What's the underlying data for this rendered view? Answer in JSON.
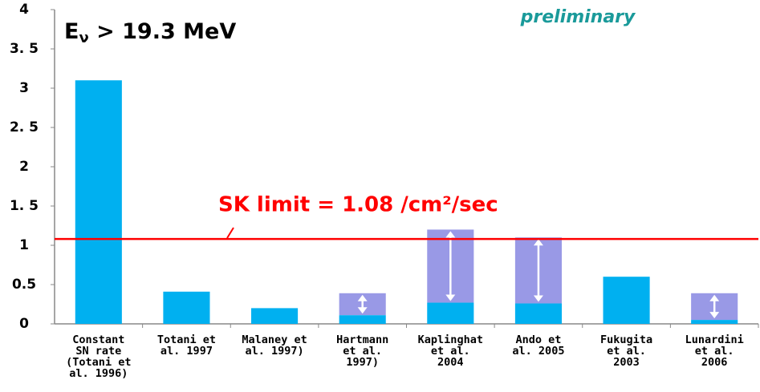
{
  "chart_data": {
    "type": "range-bar",
    "title": "E",
    "title_sub": "ν",
    "title_rest": " > 19.3 MeV",
    "watermark": "preliminary",
    "annotation": "SK limit = 1.08 /cm²/sec",
    "limit": 1.08,
    "limit_color": "#ff0000",
    "categories": [
      [
        "Constant",
        "SN rate",
        "(Totani et",
        "al. 1996)"
      ],
      [
        "Totani et",
        "al. 1997"
      ],
      [
        "Malaney et",
        "al. 1997)"
      ],
      [
        "Hartmann",
        "et al.",
        "1997)"
      ],
      [
        "Kaplinghat",
        "et al.",
        "2004"
      ],
      [
        "Ando et",
        "al. 2005"
      ],
      [
        "Fukugita",
        "et al.",
        "2003"
      ],
      [
        "Lunardini",
        "et al.",
        "2006"
      ]
    ],
    "values": [
      3.1,
      0.41,
      0.2,
      0.11,
      0.27,
      0.26,
      0.6,
      0.05
    ],
    "upper": [
      null,
      null,
      null,
      0.39,
      1.2,
      1.1,
      null,
      0.39
    ],
    "color": "#00b0f0",
    "range_color": "#9999e6",
    "ylim": [
      0,
      4
    ],
    "yticks": [
      0,
      {
        "value": 0.5,
        "label": "0.5"
      },
      1,
      {
        "value": 1.5,
        "label": "1. 5"
      },
      2,
      {
        "value": 2.5,
        "label": "2. 5"
      },
      3,
      {
        "value": 3.5,
        "label": "3. 5"
      },
      4
    ]
  }
}
